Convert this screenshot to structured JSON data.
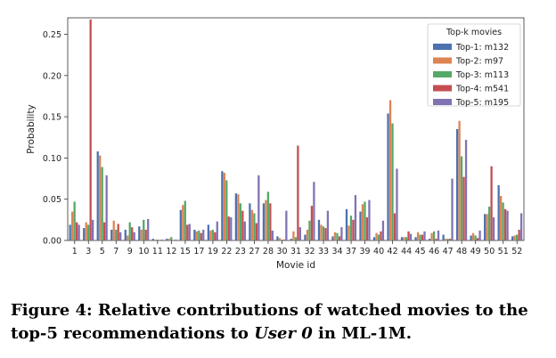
{
  "chart_data": {
    "type": "bar",
    "xlabel": "Movie id",
    "ylabel": "Probability",
    "ylim": [
      0,
      0.27
    ],
    "yticks": [
      "0.00",
      "0.05",
      "0.10",
      "0.15",
      "0.20",
      "0.25"
    ],
    "categories": [
      "1",
      "3",
      "5",
      "7",
      "9",
      "10",
      "11",
      "12",
      "15",
      "17",
      "19",
      "22",
      "23",
      "27",
      "28",
      "30",
      "31",
      "32",
      "33",
      "34",
      "37",
      "39",
      "40",
      "42",
      "44",
      "45",
      "46",
      "47",
      "48",
      "49",
      "50",
      "51",
      "52"
    ],
    "legend_title": "Top-k movies",
    "legend_placement": "top-right",
    "series": [
      {
        "name": "Top-1: m132",
        "color": "#4c72b0",
        "values": [
          0.019,
          0.015,
          0.108,
          0.013,
          0.013,
          0.017,
          0.002,
          0.002,
          0.037,
          0.013,
          0.019,
          0.084,
          0.057,
          0.045,
          0.045,
          0.005,
          0.002,
          0.007,
          0.025,
          0.005,
          0.038,
          0.035,
          0.004,
          0.154,
          0.004,
          0.004,
          0.002,
          0.007,
          0.135,
          0.006,
          0.032,
          0.067,
          0.005
        ]
      },
      {
        "name": "Top-2: m97",
        "color": "#dd8452",
        "values": [
          0.035,
          0.022,
          0.103,
          0.024,
          0.006,
          0.013,
          0.001,
          0.002,
          0.043,
          0.011,
          0.012,
          0.082,
          0.056,
          0.037,
          0.049,
          0.003,
          0.011,
          0.013,
          0.019,
          0.01,
          0.018,
          0.044,
          0.009,
          0.17,
          0.004,
          0.01,
          0.009,
          0.002,
          0.145,
          0.009,
          0.032,
          0.054,
          0.006
        ]
      },
      {
        "name": "Top-3: m113",
        "color": "#55a868",
        "values": [
          0.047,
          0.019,
          0.089,
          0.013,
          0.022,
          0.025,
          0.001,
          0.004,
          0.048,
          0.012,
          0.013,
          0.073,
          0.045,
          0.033,
          0.059,
          0.001,
          0.004,
          0.024,
          0.017,
          0.009,
          0.03,
          0.047,
          0.007,
          0.142,
          0.004,
          0.007,
          0.011,
          0.002,
          0.102,
          0.006,
          0.041,
          0.046,
          0.007
        ]
      },
      {
        "name": "Top-4: m541",
        "color": "#c44e52",
        "values": [
          0.022,
          0.268,
          0.022,
          0.02,
          0.016,
          0.013,
          0.0,
          0.0,
          0.019,
          0.009,
          0.01,
          0.029,
          0.036,
          0.021,
          0.045,
          0.001,
          0.115,
          0.042,
          0.015,
          0.005,
          0.025,
          0.028,
          0.011,
          0.033,
          0.011,
          0.007,
          0.002,
          0.002,
          0.077,
          0.003,
          0.09,
          0.038,
          0.013
        ]
      },
      {
        "name": "Top-5: m195",
        "color": "#8172b3",
        "values": [
          0.019,
          0.025,
          0.079,
          0.01,
          0.01,
          0.026,
          0.001,
          0.001,
          0.02,
          0.013,
          0.023,
          0.028,
          0.023,
          0.079,
          0.012,
          0.036,
          0.016,
          0.071,
          0.036,
          0.016,
          0.055,
          0.049,
          0.024,
          0.087,
          0.008,
          0.011,
          0.012,
          0.075,
          0.122,
          0.012,
          0.028,
          0.036,
          0.033
        ]
      }
    ]
  },
  "caption": {
    "prefix": "Figure 4: Relative contributions of watched movies to the top-5 recommendations to ",
    "italic": "User 0",
    "suffix": " in ML-1M."
  }
}
